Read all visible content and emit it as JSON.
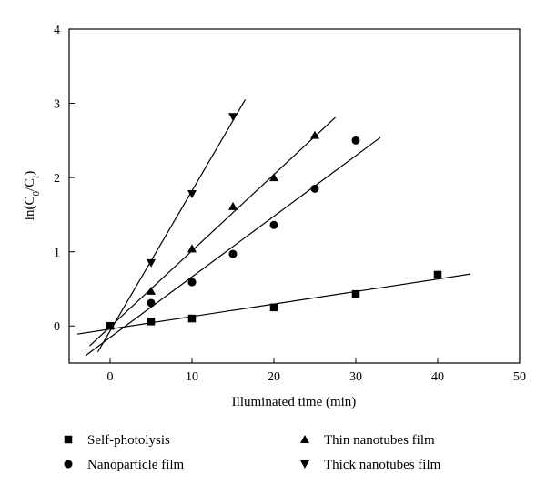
{
  "chart_data": {
    "type": "scatter",
    "xlabel": "Illuminated time (min)",
    "ylabel_parts": [
      "ln(C",
      "0",
      "/C",
      "t",
      ")"
    ],
    "xlim": [
      -5,
      50
    ],
    "ylim": [
      -0.5,
      4
    ],
    "xticks": [
      0,
      10,
      20,
      30,
      40,
      50
    ],
    "yticks": [
      0,
      1,
      2,
      3,
      4
    ],
    "grid": false,
    "legend_position": "bottom",
    "series": [
      {
        "name": "Self-photolysis",
        "marker": "square",
        "x": [
          0,
          5,
          10,
          20,
          30,
          40
        ],
        "y": [
          0.0,
          0.06,
          0.1,
          0.25,
          0.43,
          0.69
        ],
        "fit": {
          "x": [
            -4,
            44
          ],
          "y": [
            -0.11,
            0.7
          ]
        }
      },
      {
        "name": "Nanoparticle film",
        "marker": "circle",
        "x": [
          5,
          10,
          15,
          20,
          25,
          30
        ],
        "y": [
          0.31,
          0.59,
          0.97,
          1.36,
          1.85,
          2.5
        ],
        "fit": {
          "x": [
            -3,
            33
          ],
          "y": [
            -0.4,
            2.54
          ]
        }
      },
      {
        "name": "Thin nanotubes film",
        "marker": "triangle-up",
        "x": [
          5,
          10,
          15,
          20,
          25
        ],
        "y": [
          0.47,
          1.04,
          1.61,
          2.0,
          2.57
        ],
        "fit": {
          "x": [
            -2.5,
            27.5
          ],
          "y": [
            -0.27,
            2.81
          ]
        }
      },
      {
        "name": "Thick nanotubes film",
        "marker": "triangle-down",
        "x": [
          5,
          10,
          15
        ],
        "y": [
          0.85,
          1.78,
          2.82
        ],
        "fit": {
          "x": [
            -1.5,
            16.5
          ],
          "y": [
            -0.35,
            3.05
          ]
        }
      }
    ]
  }
}
